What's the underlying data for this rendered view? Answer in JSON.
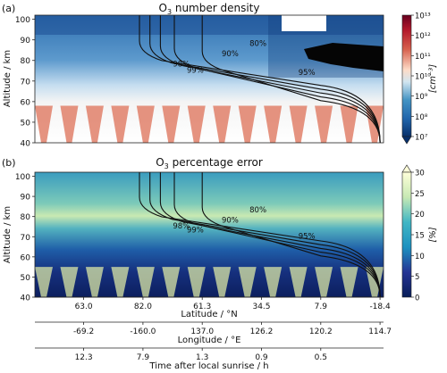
{
  "chart_data": [
    {
      "type": "heatmap",
      "panel_label": "(a)",
      "title_prefix": "O",
      "title_sub": "3",
      "title_suffix": " number density",
      "ylabel": "Altitude / km",
      "ylim": [
        40,
        102
      ],
      "yticks": [
        40,
        50,
        60,
        70,
        80,
        90,
        100
      ],
      "colorbar": {
        "scale": "log",
        "label": "[cm⁻³]",
        "ticks": [
          "10¹³",
          "10¹²",
          "10¹¹",
          "10¹⁰",
          "10⁹",
          "10⁸",
          "10⁷"
        ],
        "extend": "min",
        "colormap": "RdBu_r"
      },
      "contours": [
        {
          "label": "80%",
          "x_top": 0.42,
          "label_pos": [
            0.64,
            87
          ]
        },
        {
          "label": "90%",
          "x_top": 0.46,
          "label_pos": [
            0.56,
            82
          ]
        },
        {
          "label": "95%",
          "x_top": 0.36,
          "label_pos": [
            0.78,
            73
          ]
        },
        {
          "label": "98%",
          "x_top": 0.31,
          "label_pos": [
            0.42,
            77
          ]
        },
        {
          "label": "99%",
          "x_top": 0.33,
          "label_pos": [
            0.46,
            74
          ]
        }
      ]
    },
    {
      "type": "heatmap",
      "panel_label": "(b)",
      "title_prefix": "O",
      "title_sub": "3",
      "title_suffix": " percentage error",
      "ylabel": "Altitude / km",
      "ylim": [
        40,
        102
      ],
      "yticks": [
        40,
        50,
        60,
        70,
        80,
        90,
        100
      ],
      "colorbar": {
        "scale": "linear",
        "label": "[%]",
        "ticks": [
          "30",
          "25",
          "20",
          "15",
          "10",
          "5",
          "0"
        ],
        "extend": "max",
        "colormap": "YlGnBu_r"
      },
      "contours": [
        {
          "label": "80%",
          "label_pos": [
            0.64,
            82
          ]
        },
        {
          "label": "90%",
          "label_pos": [
            0.56,
            77
          ]
        },
        {
          "label": "95%",
          "label_pos": [
            0.78,
            69
          ]
        },
        {
          "label": "98%",
          "label_pos": [
            0.42,
            74
          ]
        },
        {
          "label": "99%",
          "label_pos": [
            0.46,
            72
          ]
        }
      ]
    }
  ],
  "x_axes": [
    {
      "label": "Latitude / °N",
      "ticks": [
        "63.0",
        "82.0",
        "61.3",
        "34.5",
        "7.9",
        "-18.4"
      ]
    },
    {
      "label": "Longitude / °E",
      "ticks": [
        "-69.2",
        "-160.0",
        "137.0",
        "126.2",
        "120.2",
        "114.7"
      ]
    },
    {
      "label": "Time after local sunrise / h",
      "ticks": [
        "12.3",
        "7.9",
        "1.3",
        "0.9",
        "0.5"
      ]
    }
  ],
  "x_tick_positions": [
    0.14,
    0.31,
    0.48,
    0.65,
    0.82,
    0.99
  ]
}
